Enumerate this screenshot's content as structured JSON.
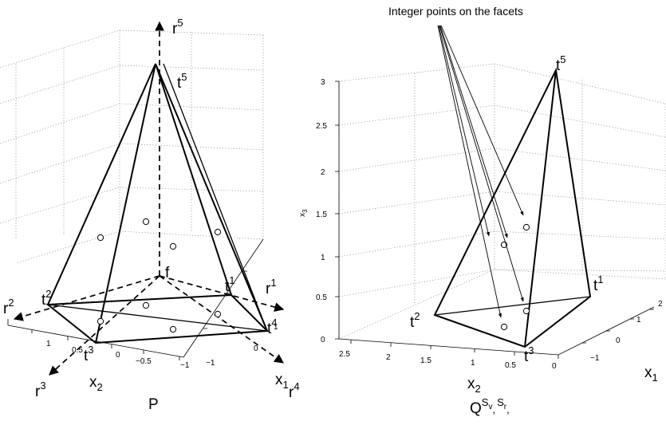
{
  "annotation": "Integer points on the facets",
  "left_panel": {
    "caption": "P",
    "x1_tick_labels": [
      "1",
      "0",
      "−1"
    ],
    "x2_tick_labels": [
      "1",
      "0.5",
      "0",
      "−0.5",
      "−1"
    ],
    "x1_axis_label": "x",
    "x1_axis_sub": "1",
    "x2_axis_label": "x",
    "x2_axis_sub": "2",
    "vertices": [
      {
        "base": "t",
        "sup": "5"
      },
      {
        "base": "t",
        "sup": "2"
      },
      {
        "base": "t",
        "sup": "1"
      },
      {
        "base": "t",
        "sup": "3"
      },
      {
        "base": "t",
        "sup": "4"
      }
    ],
    "rays": [
      {
        "base": "r",
        "sup": "5"
      },
      {
        "base": "r",
        "sup": "2"
      },
      {
        "base": "r",
        "sup": "1"
      },
      {
        "base": "r",
        "sup": "3"
      },
      {
        "base": "r",
        "sup": "4"
      }
    ],
    "origin_label": "f"
  },
  "right_panel": {
    "x3_tick_labels": [
      "3",
      "2.5",
      "2",
      "1.5",
      "1",
      "0.5",
      "0"
    ],
    "x3_axis_label": "x",
    "x3_axis_sub": "3",
    "x2_tick_labels": [
      "2.5",
      "2",
      "1.5",
      "1",
      "0.5",
      "0"
    ],
    "x1_tick_labels": [
      "2",
      "1",
      "0",
      "−1"
    ],
    "x2_axis_label": "x",
    "x2_axis_sub": "2",
    "x1_axis_label": "x",
    "x1_axis_sub": "1",
    "vertices": [
      {
        "base": "t",
        "sup": "5"
      },
      {
        "base": "t",
        "sup": "1"
      },
      {
        "base": "t",
        "sup": "2"
      },
      {
        "base": "t",
        "sup": "3"
      }
    ],
    "caption": {
      "base": "Q",
      "sup1": "S",
      "sub1": "v",
      "sep": ",",
      "sup2": "S",
      "sub2": "r",
      "end": ","
    }
  }
}
